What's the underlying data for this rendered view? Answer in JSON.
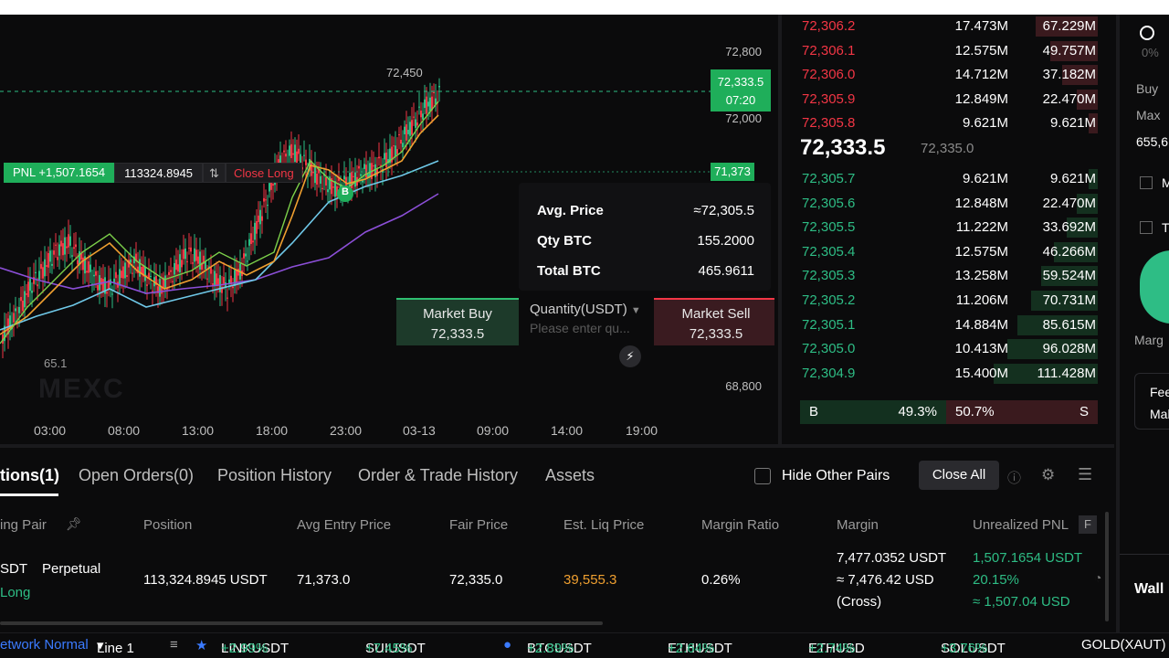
{
  "chart": {
    "price_labels": [
      "72,800",
      "72,000",
      "68,800"
    ],
    "current_price": "72,333.5",
    "current_time": "07:20",
    "position_line_price": "71,373",
    "high_label": "72,450",
    "low_label": "65.1",
    "time_labels": [
      "03:00",
      "08:00",
      "13:00",
      "18:00",
      "23:00",
      "03-13",
      "09:00",
      "14:00",
      "19:00"
    ],
    "marker_b": "B",
    "watermark": "MEXC",
    "pnl": {
      "pnl_label": "PNL +1,507.1654",
      "qty_label": "113324.8945",
      "reverse_icon": "⇅",
      "close_label": "Close Long"
    }
  },
  "popup": {
    "avg_price_label": "Avg. Price",
    "avg_price_value": "≈72,305.5",
    "qty_label": "Qty BTC",
    "qty_value": "155.2000",
    "total_label": "Total BTC",
    "total_value": "465.9611"
  },
  "trade": {
    "buy_label": "Market Buy",
    "buy_price": "72,333.5",
    "qty_title": "Quantity(USDT)",
    "qty_placeholder": "Please enter qu...",
    "sell_label": "Market Sell",
    "sell_price": "72,333.5",
    "close_glyph": "✕",
    "flash_glyph": "⚡"
  },
  "orderbook": {
    "asks": [
      {
        "price": "72,306.2",
        "size": "17.473M",
        "total": "67.229M",
        "depth": 0.6
      },
      {
        "price": "72,306.1",
        "size": "12.575M",
        "total": "49.757M",
        "depth": 0.46
      },
      {
        "price": "72,306.0",
        "size": "14.712M",
        "total": "37.182M",
        "depth": 0.34
      },
      {
        "price": "72,305.9",
        "size": "12.849M",
        "total": "22.470M",
        "depth": 0.2
      },
      {
        "price": "72,305.8",
        "size": "9.621M",
        "total": "9.621M",
        "depth": 0.09
      }
    ],
    "mid_price": "72,333.5",
    "mark_price": "72,335.0",
    "bids": [
      {
        "price": "72,305.7",
        "size": "9.621M",
        "total": "9.621M",
        "depth": 0.09
      },
      {
        "price": "72,305.6",
        "size": "12.848M",
        "total": "22.470M",
        "depth": 0.2
      },
      {
        "price": "72,305.5",
        "size": "11.222M",
        "total": "33.692M",
        "depth": 0.3
      },
      {
        "price": "72,305.4",
        "size": "12.575M",
        "total": "46.266M",
        "depth": 0.42
      },
      {
        "price": "72,305.3",
        "size": "13.258M",
        "total": "59.524M",
        "depth": 0.54
      },
      {
        "price": "72,305.2",
        "size": "11.206M",
        "total": "70.731M",
        "depth": 0.64
      },
      {
        "price": "72,305.1",
        "size": "14.884M",
        "total": "85.615M",
        "depth": 0.77
      },
      {
        "price": "72,305.0",
        "size": "10.413M",
        "total": "96.028M",
        "depth": 0.87
      },
      {
        "price": "72,304.9",
        "size": "15.400M",
        "total": "111.428M",
        "depth": 1.0
      }
    ],
    "buy_side_label": "B",
    "buy_ratio": "49.3%",
    "sell_ratio": "50.7%",
    "sell_side_label": "S"
  },
  "side_panel": {
    "pct": "0%",
    "buy_label": "Buy",
    "max_label": "Max",
    "value_label": "655,6",
    "cb1": "M",
    "cb2": "T",
    "margin_label": "Marg",
    "fee_label": "Fee",
    "maker_label": "Mal",
    "wallet_label": "Wall"
  },
  "tabs": {
    "positions": "tions(1)",
    "open_orders": "Open Orders(0)",
    "position_history": "Position History",
    "order_history": "Order & Trade History",
    "assets": "Assets",
    "hide_pairs": "Hide Other Pairs",
    "close_all": "Close All"
  },
  "table": {
    "headers": {
      "pair": "ing Pair",
      "position": "Position",
      "avg_entry": "Avg Entry Price",
      "fair": "Fair Price",
      "liq": "Est. Liq Price",
      "margin_ratio": "Margin Ratio",
      "margin": "Margin",
      "pnl": "Unrealized PNL",
      "pnl_badge": "F"
    },
    "row": {
      "pair": "SDT",
      "type": "Perpetual",
      "side": "Long",
      "position": "113,324.8945 USDT",
      "avg_entry": "71,373.0",
      "fair": "72,335.0",
      "liq": "39,555.3",
      "margin_ratio": "0.26%",
      "margin_usdt": "7,477.0352 USDT",
      "margin_usd": "≈ 7,476.42 USD",
      "margin_mode": "(Cross)",
      "pnl_usdt": "1,507.1654 USDT",
      "pnl_pct": "20.15%",
      "pnl_usd": "≈ 1,507.04 USD"
    }
  },
  "ticker": {
    "network": "etwork Normal",
    "line": "Line 1",
    "items": [
      {
        "sym": "LINKUSDT",
        "chg": "+2.99%"
      },
      {
        "sym": "SUIUSDT",
        "chg": "+7.45%"
      },
      {
        "sym": "BTCUSDT",
        "chg": "+2.89%"
      },
      {
        "sym": "ETHUSDT",
        "chg": "+2.64%"
      },
      {
        "sym": "ETHUSD",
        "chg": "+2.74%"
      },
      {
        "sym": "SOLUSDT",
        "chg": "+3.76%"
      }
    ],
    "last": "GOLD(XAUT)"
  }
}
